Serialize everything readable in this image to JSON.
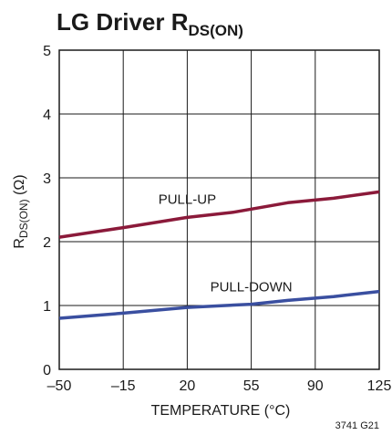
{
  "chart_data": {
    "type": "line",
    "title": "LG Driver R",
    "title_subscript": "DS(ON)",
    "xlabel": "TEMPERATURE (°C)",
    "ylabel_main": "R",
    "ylabel_sub": "DS(ON)",
    "ylabel_unit": " (Ω)",
    "xlim": [
      -50,
      125
    ],
    "ylim": [
      0,
      5
    ],
    "x_ticks": [
      -50,
      -15,
      20,
      55,
      90,
      125
    ],
    "x_tick_labels": [
      "–50",
      "–15",
      "20",
      "55",
      "90",
      "125"
    ],
    "y_ticks": [
      0,
      1,
      2,
      3,
      4,
      5
    ],
    "y_tick_labels": [
      "0",
      "1",
      "2",
      "3",
      "4",
      "5"
    ],
    "grid": true,
    "series": [
      {
        "name": "PULL-UP",
        "color": "#8b1a3a",
        "x": [
          -50,
          -15,
          20,
          45,
          75,
          100,
          125
        ],
        "y": [
          2.07,
          2.22,
          2.38,
          2.46,
          2.61,
          2.68,
          2.78
        ]
      },
      {
        "name": "PULL-DOWN",
        "color": "#3a4fa0",
        "x": [
          -50,
          -15,
          20,
          55,
          75,
          100,
          125
        ],
        "y": [
          0.8,
          0.88,
          0.97,
          1.02,
          1.08,
          1.14,
          1.22
        ]
      }
    ],
    "figure_id": "3741 G21"
  }
}
